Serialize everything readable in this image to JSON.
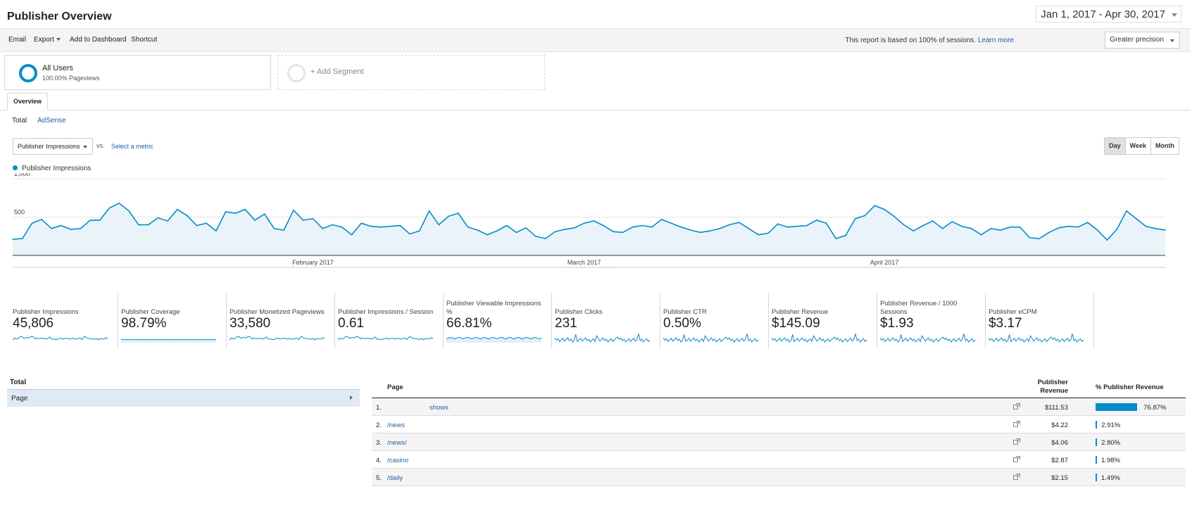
{
  "header": {
    "title": "Publisher Overview",
    "date_range": "Jan 1, 2017 - Apr 30, 2017"
  },
  "toolbar": {
    "email": "Email",
    "export": "Export",
    "add_to_dashboard": "Add to Dashboard",
    "shortcut": "Shortcut",
    "report_note": "This report is based on 100% of sessions.",
    "learn_more": "Learn more",
    "precision": "Greater precision"
  },
  "segments": {
    "all_users_name": "All Users",
    "all_users_sub": "100.00% Pageviews",
    "add_segment": "+ Add Segment"
  },
  "tabs": {
    "overview": "Overview",
    "total": "Total",
    "adsense": "AdSense"
  },
  "chart_controls": {
    "metric": "Publisher Impressions",
    "vs": "vs.",
    "select_metric": "Select a metric",
    "period_day": "Day",
    "period_week": "Week",
    "period_month": "Month"
  },
  "chart_data": {
    "type": "area",
    "title": "",
    "legend": [
      "Publisher Impressions"
    ],
    "series_color": "#058dc7",
    "y_ticks": [
      "1,000",
      "500"
    ],
    "ylim": [
      0,
      1000
    ],
    "x_labels": [
      "February 2017",
      "March 2017",
      "April 2017"
    ],
    "x_label_days": [
      31,
      59,
      90
    ],
    "days": 120,
    "values": [
      210,
      220,
      420,
      470,
      350,
      390,
      340,
      350,
      460,
      460,
      620,
      680,
      580,
      400,
      400,
      490,
      450,
      600,
      520,
      390,
      420,
      320,
      570,
      550,
      600,
      460,
      540,
      350,
      330,
      590,
      460,
      480,
      350,
      400,
      370,
      270,
      420,
      380,
      370,
      380,
      390,
      280,
      320,
      580,
      400,
      510,
      550,
      370,
      330,
      270,
      320,
      390,
      300,
      360,
      250,
      220,
      310,
      340,
      360,
      420,
      450,
      390,
      310,
      300,
      370,
      390,
      370,
      470,
      420,
      370,
      330,
      300,
      320,
      350,
      400,
      430,
      350,
      270,
      290,
      410,
      370,
      380,
      390,
      460,
      420,
      220,
      260,
      480,
      520,
      650,
      600,
      510,
      400,
      320,
      390,
      450,
      350,
      440,
      380,
      350,
      270,
      350,
      330,
      370,
      370,
      230,
      220,
      300,
      360,
      380,
      370,
      430,
      330,
      200,
      340,
      580,
      480,
      380,
      350,
      330
    ]
  },
  "scorecards": [
    {
      "label": "Publisher Impressions",
      "value": "45,806"
    },
    {
      "label": "Publisher Coverage",
      "value": "98.79%"
    },
    {
      "label": "Publisher Monetized Pageviews",
      "value": "33,580"
    },
    {
      "label": "Publisher Impressions / Session",
      "value": "0.61"
    },
    {
      "label": "Publisher Viewable Impressions %",
      "value": "66.81%"
    },
    {
      "label": "Publisher Clicks",
      "value": "231"
    },
    {
      "label": "Publisher CTR",
      "value": "0.50%"
    },
    {
      "label": "Publisher Revenue",
      "value": "$145.09"
    },
    {
      "label": "Publisher Revenue / 1000 Sessions",
      "value": "$1.93"
    },
    {
      "label": "Publisher eCPM",
      "value": "$3.17"
    }
  ],
  "dimension_panel": {
    "heading": "Total",
    "selected": "Page"
  },
  "table": {
    "col_page": "Page",
    "col_revenue": "Publisher Revenue",
    "col_pct": "% Publisher Revenue",
    "rows": [
      {
        "index": "1.",
        "page": "shows",
        "revenue": "$111.53",
        "pct": "76.87%",
        "pct_value": 76.87
      },
      {
        "index": "2.",
        "page": "/news",
        "revenue": "$4.22",
        "pct": "2.91%",
        "pct_value": 2.91
      },
      {
        "index": "3.",
        "page": "/news/",
        "revenue": "$4.06",
        "pct": "2.80%",
        "pct_value": 2.8
      },
      {
        "index": "4.",
        "page": "/casino",
        "revenue": "$2.87",
        "pct": "1.98%",
        "pct_value": 1.98
      },
      {
        "index": "5.",
        "page": "/daily",
        "revenue": "$2.15",
        "pct": "1.49%",
        "pct_value": 1.49
      }
    ]
  }
}
